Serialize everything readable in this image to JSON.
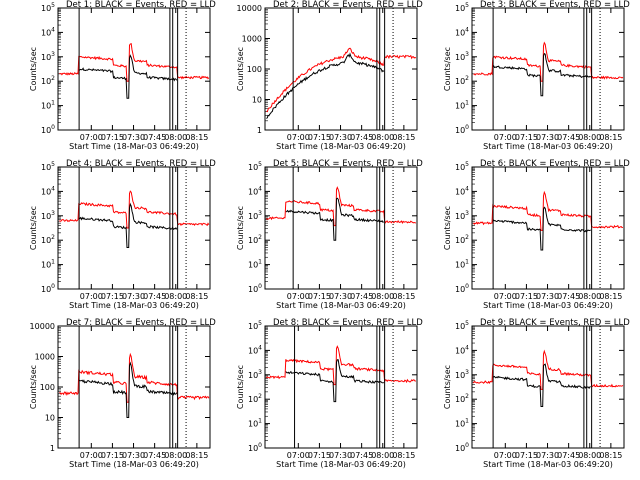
{
  "figure": {
    "xlabel": "Start Time (18-Mar-03 06:49:20)",
    "ylabel": "Counts/sec",
    "colors": {
      "events": "#000000",
      "lld": "#ff0000",
      "axes": "#000000"
    }
  },
  "chart_data": [
    {
      "type": "line",
      "title": "Det 1: BLACK = Events, RED = LLD",
      "xlabel": "Start Time (18-Mar-03 06:49:20)",
      "ylabel": "Counts/sec",
      "x_ticks": [
        "07:00",
        "07:15",
        "07:30",
        "07:45",
        "08:00",
        "08:15"
      ],
      "x_range_minutes": [
        -13,
        95
      ],
      "y_scale": "log",
      "ylim": [
        1,
        100000
      ],
      "y_ticks": [
        "10^0",
        "10^1",
        "10^2",
        "10^3",
        "10^4",
        "10^5"
      ],
      "series": [
        {
          "name": "Events",
          "color": "#000000",
          "level_log10": 2.5
        },
        {
          "name": "LLD",
          "color": "#ff0000",
          "level_log10": 3.0
        }
      ],
      "vertical_lines_minutes": [
        2,
        66.5,
        68.5,
        72
      ]
    },
    {
      "type": "line",
      "title": "Det 2: BLACK = Events, RED = LLD",
      "xlabel": "Start Time (18-Mar-03 06:49:20)",
      "ylabel": "Counts/sec",
      "x_ticks": [
        "07:00",
        "07:15",
        "07:30",
        "07:45",
        "08:00",
        "08:15"
      ],
      "x_range_minutes": [
        -13,
        95
      ],
      "y_scale": "log",
      "ylim": [
        1,
        10000
      ],
      "y_ticks": [
        "1",
        "10",
        "100",
        "1000",
        "10000"
      ],
      "series": [
        {
          "name": "Events",
          "color": "#000000",
          "level_log10": 2.2
        },
        {
          "name": "LLD",
          "color": "#ff0000",
          "level_log10": 2.4
        }
      ],
      "vertical_lines_minutes": [
        7,
        66.5,
        68.5,
        72
      ]
    },
    {
      "type": "line",
      "title": "Det 3: BLACK = Events, RED = LLD",
      "xlabel": "Start Time (18-Mar-03 06:49:20)",
      "ylabel": "Counts/sec",
      "x_ticks": [
        "07:00",
        "07:15",
        "07:30",
        "07:45",
        "08:00",
        "08:15"
      ],
      "x_range_minutes": [
        -13,
        95
      ],
      "y_scale": "log",
      "ylim": [
        1,
        100000
      ],
      "y_ticks": [
        "10^0",
        "10^1",
        "10^2",
        "10^3",
        "10^4",
        "10^5"
      ],
      "series": [
        {
          "name": "Events",
          "color": "#000000",
          "level_log10": 2.6
        },
        {
          "name": "LLD",
          "color": "#ff0000",
          "level_log10": 3.0
        }
      ],
      "vertical_lines_minutes": [
        2,
        66.5,
        68.5,
        72
      ]
    },
    {
      "type": "line",
      "title": "Det 4: BLACK = Events, RED = LLD",
      "xlabel": "Start Time (18-Mar-03 06:49:20)",
      "ylabel": "Counts/sec",
      "x_ticks": [
        "07:00",
        "07:15",
        "07:30",
        "07:45",
        "08:00",
        "08:15"
      ],
      "x_range_minutes": [
        -13,
        95
      ],
      "y_scale": "log",
      "ylim": [
        1,
        100000
      ],
      "y_ticks": [
        "10^0",
        "10^1",
        "10^2",
        "10^3",
        "10^4",
        "10^5"
      ],
      "series": [
        {
          "name": "Events",
          "color": "#000000",
          "level_log10": 2.9
        },
        {
          "name": "LLD",
          "color": "#ff0000",
          "level_log10": 3.5
        }
      ],
      "vertical_lines_minutes": [
        2,
        66.5,
        68.5,
        72
      ]
    },
    {
      "type": "line",
      "title": "Det 5: BLACK = Events, RED = LLD",
      "xlabel": "Start Time (18-Mar-03 06:49:20)",
      "ylabel": "Counts/sec",
      "x_ticks": [
        "07:00",
        "07:15",
        "07:30",
        "07:45",
        "08:00",
        "08:15"
      ],
      "x_range_minutes": [
        -13,
        95
      ],
      "y_scale": "log",
      "ylim": [
        1,
        100000
      ],
      "y_ticks": [
        "10^0",
        "10^1",
        "10^2",
        "10^3",
        "10^4",
        "10^5"
      ],
      "series": [
        {
          "name": "Events",
          "color": "#000000",
          "level_log10": 3.2
        },
        {
          "name": "LLD",
          "color": "#ff0000",
          "level_log10": 3.6
        }
      ],
      "vertical_lines_minutes": [
        7,
        66.5,
        68.5,
        72
      ]
    },
    {
      "type": "line",
      "title": "Det 6: BLACK = Events, RED = LLD",
      "xlabel": "Start Time (18-Mar-03 06:49:20)",
      "ylabel": "Counts/sec",
      "x_ticks": [
        "07:00",
        "07:15",
        "07:30",
        "07:45",
        "08:00",
        "08:15"
      ],
      "x_range_minutes": [
        -13,
        95
      ],
      "y_scale": "log",
      "ylim": [
        1,
        100000
      ],
      "y_ticks": [
        "10^0",
        "10^1",
        "10^2",
        "10^3",
        "10^4",
        "10^5"
      ],
      "series": [
        {
          "name": "Events",
          "color": "#000000",
          "level_log10": 2.8
        },
        {
          "name": "LLD",
          "color": "#ff0000",
          "level_log10": 3.4
        }
      ],
      "vertical_lines_minutes": [
        2,
        66.5,
        68.5,
        72
      ]
    },
    {
      "type": "line",
      "title": "Det 7: BLACK = Events, RED = LLD",
      "xlabel": "Start Time (18-Mar-03 06:49:20)",
      "ylabel": "Counts/sec",
      "x_ticks": [
        "07:00",
        "07:15",
        "07:30",
        "07:45",
        "08:00",
        "08:15"
      ],
      "x_range_minutes": [
        -13,
        95
      ],
      "y_scale": "log",
      "ylim": [
        1,
        10000
      ],
      "y_ticks": [
        "1",
        "10",
        "100",
        "1000",
        "10000"
      ],
      "series": [
        {
          "name": "Events",
          "color": "#000000",
          "level_log10": 2.2
        },
        {
          "name": "LLD",
          "color": "#ff0000",
          "level_log10": 2.5
        }
      ],
      "vertical_lines_minutes": [
        2,
        66.5,
        68.5,
        72
      ]
    },
    {
      "type": "line",
      "title": "Det 8: BLACK = Events, RED = LLD",
      "xlabel": "Start Time (18-Mar-03 06:49:20)",
      "ylabel": "Counts/sec",
      "x_ticks": [
        "07:00",
        "07:15",
        "07:30",
        "07:45",
        "08:00",
        "08:15"
      ],
      "x_range_minutes": [
        -13,
        95
      ],
      "y_scale": "log",
      "ylim": [
        1,
        100000
      ],
      "y_ticks": [
        "10^0",
        "10^1",
        "10^2",
        "10^3",
        "10^4",
        "10^5"
      ],
      "series": [
        {
          "name": "Events",
          "color": "#000000",
          "level_log10": 3.1
        },
        {
          "name": "LLD",
          "color": "#ff0000",
          "level_log10": 3.6
        }
      ],
      "vertical_lines_minutes": [
        8,
        66.5,
        68.5,
        72
      ]
    },
    {
      "type": "line",
      "title": "Det 9: BLACK = Events, RED = LLD",
      "xlabel": "Start Time (18-Mar-03 06:49:20)",
      "ylabel": "Counts/sec",
      "x_ticks": [
        "07:00",
        "07:15",
        "07:30",
        "07:45",
        "08:00",
        "08:15"
      ],
      "x_range_minutes": [
        -13,
        95
      ],
      "y_scale": "log",
      "ylim": [
        1,
        100000
      ],
      "y_ticks": [
        "10^0",
        "10^1",
        "10^2",
        "10^3",
        "10^4",
        "10^5"
      ],
      "series": [
        {
          "name": "Events",
          "color": "#000000",
          "level_log10": 2.9
        },
        {
          "name": "LLD",
          "color": "#ff0000",
          "level_log10": 3.4
        }
      ],
      "vertical_lines_minutes": [
        2,
        66.5,
        68.5,
        72
      ]
    }
  ]
}
